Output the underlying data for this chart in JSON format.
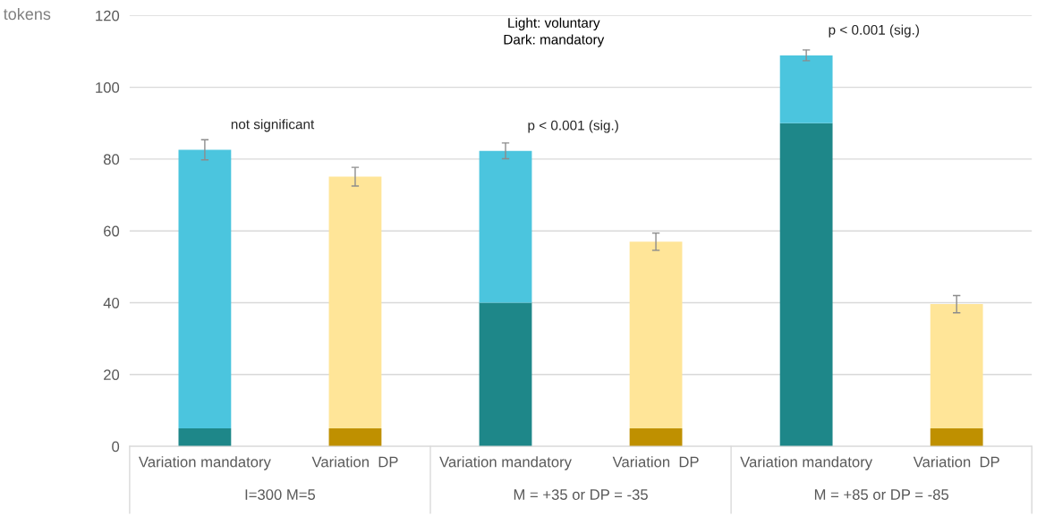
{
  "chart_data": {
    "type": "bar",
    "stacked": true,
    "ylabel": "tokens",
    "categories": [
      "Variation mandatory",
      "Variation  DP",
      "Variation mandatory",
      "Variation  DP",
      "Variation mandatory",
      "Variation  DP"
    ],
    "series": [
      {
        "colors": [
          "#1e8789",
          "#bf9000",
          "#1e8789",
          "#bf9000",
          "#1e8789",
          "#bf9000"
        ],
        "values": [
          5,
          5,
          40,
          5,
          90,
          5
        ]
      },
      {
        "colors": [
          "#4bc5de",
          "#ffe598",
          "#4bc5de",
          "#ffe598",
          "#4bc5de",
          "#ffe598"
        ],
        "values": [
          77.6,
          70.1,
          42.3,
          52,
          18.9,
          34.6
        ],
        "errors": [
          2.8,
          2.6,
          2.2,
          2.4,
          1.5,
          2.4
        ]
      }
    ],
    "ylim": [
      0,
      120
    ],
    "yticks": [
      0,
      20,
      40,
      60,
      80,
      100,
      120
    ],
    "grid": "y",
    "legend": false,
    "annotations": [
      "Light: voluntary",
      "Dark: mandatory",
      "not significant",
      "p < 0.001 (sig.)",
      "p < 0.001 (sig.)",
      "I=300 M=5",
      "M = +35 or DP = -35",
      "M = +85 or DP = -85"
    ]
  }
}
